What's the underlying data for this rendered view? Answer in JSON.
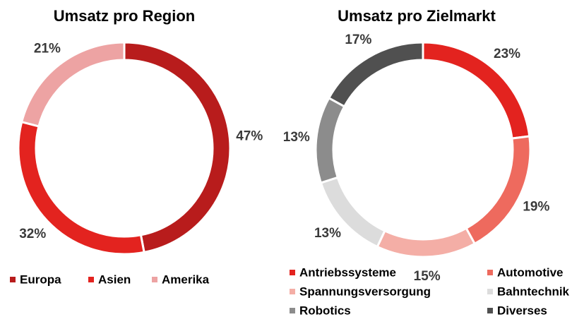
{
  "chart_data": [
    {
      "type": "pie",
      "title": "Umsatz pro Region",
      "categories": [
        "Europa",
        "Asien",
        "Amerika"
      ],
      "values": [
        47,
        32,
        21
      ],
      "value_labels": [
        "47%",
        "32%",
        "21%"
      ],
      "colors": [
        "#b81c1c",
        "#e3231f",
        "#eda3a3"
      ]
    },
    {
      "type": "pie",
      "title": "Umsatz pro Zielmarkt",
      "categories": [
        "Antriebssysteme",
        "Automotive",
        "Spannungsversorgung",
        "Bahntechnik",
        "Robotics",
        "Diverses"
      ],
      "values": [
        23,
        19,
        15,
        13,
        13,
        17
      ],
      "value_labels": [
        "23%",
        "19%",
        "15%",
        "13%",
        "13%",
        "17%"
      ],
      "colors": [
        "#e3231f",
        "#ee6a5e",
        "#f4aea6",
        "#dcdcdc",
        "#8c8c8c",
        "#505050"
      ]
    }
  ]
}
